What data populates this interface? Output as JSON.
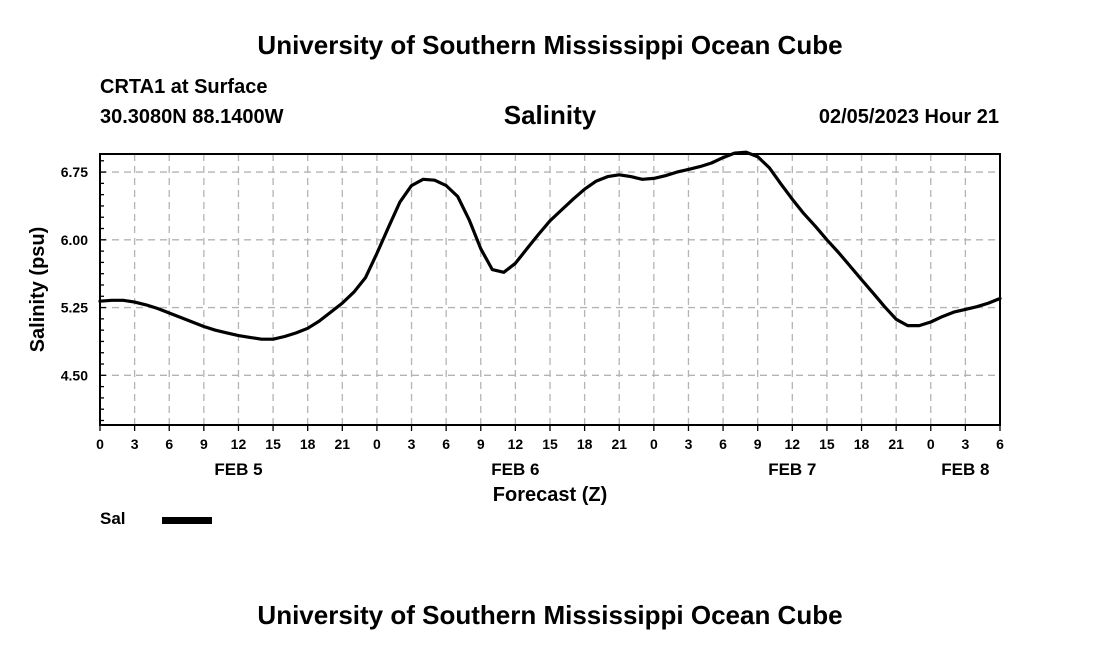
{
  "header": {
    "title": "University of Southern Mississippi Ocean Cube",
    "station": "CRTA1 at Surface",
    "coordinates": "30.3080N  88.1400W",
    "datetime": "02/05/2023 Hour 21"
  },
  "footer": {
    "title": "University of Southern Mississippi Ocean Cube"
  },
  "chart_data": {
    "type": "line",
    "title": "Salinity",
    "xlabel": "Forecast (Z)",
    "ylabel": "Salinity (psu)",
    "x_unit": "hours from Feb 5 00Z",
    "xlim": [
      0,
      78
    ],
    "ylim": [
      3.95,
      6.95
    ],
    "grid": true,
    "x_ticks": [
      {
        "x": 0,
        "label": "0"
      },
      {
        "x": 3,
        "label": "3"
      },
      {
        "x": 6,
        "label": "6"
      },
      {
        "x": 9,
        "label": "9"
      },
      {
        "x": 12,
        "label": "12"
      },
      {
        "x": 15,
        "label": "15"
      },
      {
        "x": 18,
        "label": "18"
      },
      {
        "x": 21,
        "label": "21"
      },
      {
        "x": 24,
        "label": "0"
      },
      {
        "x": 27,
        "label": "3"
      },
      {
        "x": 30,
        "label": "6"
      },
      {
        "x": 33,
        "label": "9"
      },
      {
        "x": 36,
        "label": "12"
      },
      {
        "x": 39,
        "label": "15"
      },
      {
        "x": 42,
        "label": "18"
      },
      {
        "x": 45,
        "label": "21"
      },
      {
        "x": 48,
        "label": "0"
      },
      {
        "x": 51,
        "label": "3"
      },
      {
        "x": 54,
        "label": "6"
      },
      {
        "x": 57,
        "label": "9"
      },
      {
        "x": 60,
        "label": "12"
      },
      {
        "x": 63,
        "label": "15"
      },
      {
        "x": 66,
        "label": "18"
      },
      {
        "x": 69,
        "label": "21"
      },
      {
        "x": 72,
        "label": "0"
      },
      {
        "x": 75,
        "label": "3"
      },
      {
        "x": 78,
        "label": "6"
      }
    ],
    "y_ticks": [
      {
        "y": 4.5,
        "label": "4.50"
      },
      {
        "y": 5.25,
        "label": "5.25"
      },
      {
        "y": 6.0,
        "label": "6.00"
      },
      {
        "y": 6.75,
        "label": "6.75"
      }
    ],
    "date_labels": [
      {
        "x": 12,
        "label": "FEB 5"
      },
      {
        "x": 36,
        "label": "FEB 6"
      },
      {
        "x": 60,
        "label": "FEB 7"
      },
      {
        "x": 75,
        "label": "FEB 8"
      }
    ],
    "legend": {
      "placement": "bottom-left"
    },
    "series": [
      {
        "name": "Sal",
        "color": "#000000",
        "x": [
          0,
          1,
          2,
          3,
          4,
          5,
          6,
          7,
          8,
          9,
          10,
          11,
          12,
          13,
          14,
          15,
          16,
          17,
          18,
          19,
          20,
          21,
          22,
          23,
          24,
          25,
          26,
          27,
          28,
          29,
          30,
          31,
          32,
          33,
          34,
          35,
          36,
          37,
          38,
          39,
          40,
          41,
          42,
          43,
          44,
          45,
          46,
          47,
          48,
          49,
          50,
          51,
          52,
          53,
          54,
          55,
          56,
          57,
          58,
          59,
          60,
          61,
          62,
          63,
          64,
          65,
          66,
          67,
          68,
          69,
          70,
          71,
          72,
          73,
          74,
          75,
          76,
          77,
          78
        ],
        "values": [
          5.32,
          5.33,
          5.33,
          5.31,
          5.28,
          5.24,
          5.19,
          5.14,
          5.09,
          5.04,
          5.0,
          4.97,
          4.94,
          4.92,
          4.9,
          4.9,
          4.93,
          4.97,
          5.02,
          5.1,
          5.2,
          5.3,
          5.42,
          5.58,
          5.85,
          6.14,
          6.42,
          6.6,
          6.67,
          6.66,
          6.6,
          6.48,
          6.22,
          5.9,
          5.67,
          5.64,
          5.74,
          5.9,
          6.06,
          6.21,
          6.33,
          6.45,
          6.56,
          6.65,
          6.7,
          6.72,
          6.7,
          6.67,
          6.68,
          6.71,
          6.75,
          6.78,
          6.81,
          6.85,
          6.91,
          6.96,
          6.97,
          6.92,
          6.8,
          6.62,
          6.45,
          6.29,
          6.15,
          6.0,
          5.86,
          5.71,
          5.56,
          5.41,
          5.26,
          5.12,
          5.05,
          5.05,
          5.09,
          5.15,
          5.2,
          5.23,
          5.26,
          5.3,
          5.35
        ]
      }
    ]
  }
}
